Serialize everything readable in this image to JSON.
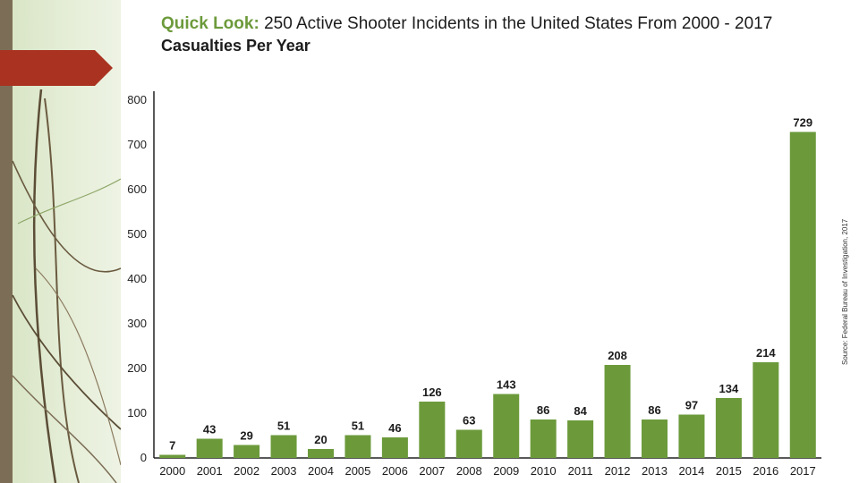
{
  "title": {
    "prefix": "Quick Look:",
    "text": "250 Active Shooter Incidents in the United States From 2000 - 2017"
  },
  "subtitle": "Casualties Per Year",
  "source": "Source: Federal Bureau of Investigation, 2017",
  "colors": {
    "bar": "#6c9a3b",
    "title_accent": "#6c9a3b",
    "arrow": "#a93320"
  },
  "chart_data": {
    "type": "bar",
    "categories": [
      "2000",
      "2001",
      "2002",
      "2003",
      "2004",
      "2005",
      "2006",
      "2007",
      "2008",
      "2009",
      "2010",
      "2011",
      "2012",
      "2013",
      "2014",
      "2015",
      "2016",
      "2017"
    ],
    "values": [
      7,
      43,
      29,
      51,
      20,
      51,
      46,
      126,
      63,
      143,
      86,
      84,
      208,
      86,
      97,
      134,
      214,
      729
    ],
    "yticks": [
      0,
      100,
      200,
      300,
      400,
      500,
      600,
      700,
      800
    ],
    "ylim": [
      0,
      800
    ],
    "xlabel": "",
    "ylabel": "",
    "grid": false
  }
}
